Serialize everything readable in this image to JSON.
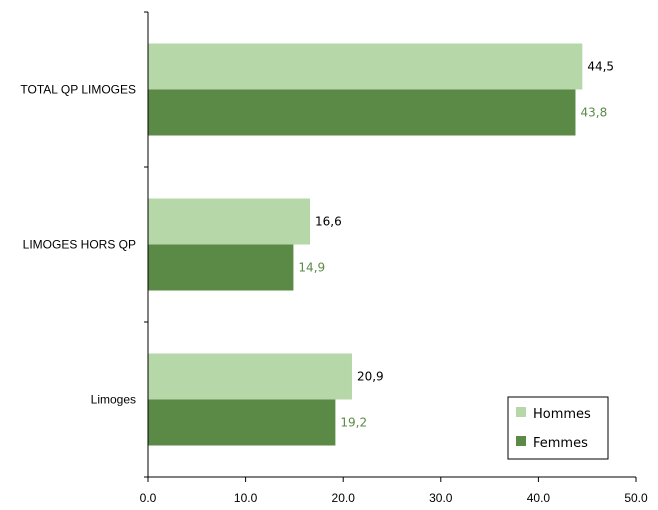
{
  "chart_data": {
    "type": "bar",
    "orientation": "horizontal",
    "categories": [
      "TOTAL QP LIMOGES",
      "LIMOGES HORS QP",
      "Limoges"
    ],
    "series": [
      {
        "name": "Hommes",
        "values": [
          44.5,
          16.6,
          20.9
        ],
        "labels": [
          "44,5",
          "16,6",
          "20,9"
        ],
        "color": "#b6d7a8",
        "label_color": "#000000"
      },
      {
        "name": "Femmes",
        "values": [
          43.8,
          14.9,
          19.2
        ],
        "labels": [
          "43,8",
          "14,9",
          "19,2"
        ],
        "color": "#5b8a46",
        "label_color": "#5b8a46"
      }
    ],
    "xlim": [
      0,
      50
    ],
    "xticks": [
      "0.0",
      "10.0",
      "20.0",
      "30.0",
      "40.0",
      "50.0"
    ],
    "grid": false,
    "legend_position": "bottom-right"
  }
}
